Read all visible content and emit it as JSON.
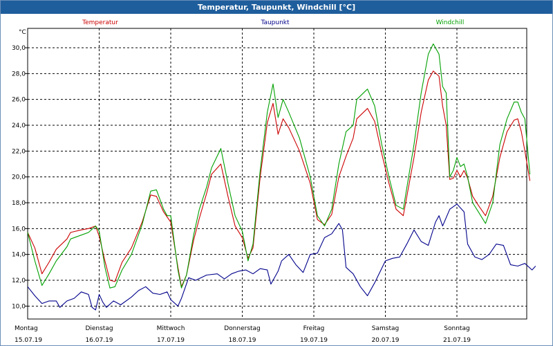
{
  "window": {
    "title": "Temperatur, Taupunkt, Windchill [°C]"
  },
  "chart_data": {
    "type": "line",
    "title": "Temperatur, Taupunkt, Windchill [°C]",
    "ylabel": "°C",
    "ylim": [
      9.0,
      31.5
    ],
    "yticks": [
      10.0,
      12.0,
      14.0,
      16.0,
      18.0,
      20.0,
      22.0,
      24.0,
      26.0,
      28.0,
      30.0
    ],
    "ytick_labels": [
      "10,0",
      "12,0",
      "14,0",
      "16,0",
      "18,0",
      "20,0",
      "22,0",
      "24,0",
      "26,0",
      "28,0",
      "30,0"
    ],
    "xlim": [
      0,
      7
    ],
    "xticks": [
      {
        "day": "Montag",
        "date": "15.07.19"
      },
      {
        "day": "Dienstag",
        "date": "16.07.19"
      },
      {
        "day": "Mittwoch",
        "date": "17.07.19"
      },
      {
        "day": "Donnerstag",
        "date": "18.07.19"
      },
      {
        "day": "Freitag",
        "date": "19.07.19"
      },
      {
        "day": "Samstag",
        "date": "20.07.19"
      },
      {
        "day": "Sonntag",
        "date": "21.07.19"
      }
    ],
    "grid": true,
    "legend_position": "top",
    "series": [
      {
        "name": "Temperatur",
        "color": "#cc0000",
        "points": [
          [
            0.0,
            15.7
          ],
          [
            0.1,
            14.5
          ],
          [
            0.2,
            12.5
          ],
          [
            0.3,
            13.4
          ],
          [
            0.4,
            14.4
          ],
          [
            0.55,
            15.2
          ],
          [
            0.6,
            15.7
          ],
          [
            0.75,
            15.9
          ],
          [
            0.85,
            16.0
          ],
          [
            0.95,
            16.2
          ],
          [
            1.0,
            15.4
          ],
          [
            1.08,
            13.5
          ],
          [
            1.15,
            12.0
          ],
          [
            1.22,
            11.9
          ],
          [
            1.32,
            13.4
          ],
          [
            1.45,
            14.5
          ],
          [
            1.6,
            16.5
          ],
          [
            1.72,
            18.6
          ],
          [
            1.8,
            18.5
          ],
          [
            1.9,
            17.3
          ],
          [
            1.95,
            16.9
          ],
          [
            2.0,
            16.5
          ],
          [
            2.1,
            13.0
          ],
          [
            2.15,
            11.5
          ],
          [
            2.22,
            12.4
          ],
          [
            2.32,
            15.1
          ],
          [
            2.4,
            16.8
          ],
          [
            2.5,
            18.7
          ],
          [
            2.57,
            20.2
          ],
          [
            2.7,
            21.0
          ],
          [
            2.8,
            18.5
          ],
          [
            2.9,
            16.2
          ],
          [
            3.0,
            15.3
          ],
          [
            3.08,
            13.7
          ],
          [
            3.15,
            14.5
          ],
          [
            3.25,
            20.0
          ],
          [
            3.35,
            24.2
          ],
          [
            3.43,
            25.7
          ],
          [
            3.5,
            23.3
          ],
          [
            3.57,
            24.5
          ],
          [
            3.65,
            23.8
          ],
          [
            3.8,
            22.0
          ],
          [
            3.95,
            19.5
          ],
          [
            4.05,
            16.7
          ],
          [
            4.15,
            16.3
          ],
          [
            4.25,
            17.1
          ],
          [
            4.35,
            20.0
          ],
          [
            4.45,
            21.6
          ],
          [
            4.55,
            23.0
          ],
          [
            4.6,
            24.5
          ],
          [
            4.75,
            25.3
          ],
          [
            4.85,
            24.3
          ],
          [
            4.95,
            21.8
          ],
          [
            5.05,
            19.5
          ],
          [
            5.15,
            17.5
          ],
          [
            5.25,
            17.0
          ],
          [
            5.4,
            21.5
          ],
          [
            5.5,
            25.0
          ],
          [
            5.6,
            27.5
          ],
          [
            5.67,
            28.2
          ],
          [
            5.75,
            27.8
          ],
          [
            5.8,
            25.5
          ],
          [
            5.85,
            24.0
          ],
          [
            5.9,
            19.8
          ],
          [
            5.95,
            19.9
          ],
          [
            6.0,
            20.5
          ],
          [
            6.05,
            20.0
          ],
          [
            6.1,
            20.5
          ],
          [
            6.15,
            19.9
          ],
          [
            6.22,
            18.5
          ],
          [
            6.3,
            17.8
          ],
          [
            6.4,
            17.0
          ],
          [
            6.5,
            18.5
          ],
          [
            6.6,
            21.5
          ],
          [
            6.7,
            23.5
          ],
          [
            6.8,
            24.4
          ],
          [
            6.85,
            24.5
          ],
          [
            6.9,
            23.5
          ],
          [
            6.95,
            22.0
          ],
          [
            7.02,
            19.7
          ]
        ]
      },
      {
        "name": "Taupunkt",
        "color": "#00008b",
        "points": [
          [
            0.0,
            11.5
          ],
          [
            0.1,
            10.8
          ],
          [
            0.2,
            10.2
          ],
          [
            0.3,
            10.4
          ],
          [
            0.4,
            10.4
          ],
          [
            0.45,
            9.9
          ],
          [
            0.55,
            10.4
          ],
          [
            0.65,
            10.6
          ],
          [
            0.75,
            11.1
          ],
          [
            0.85,
            10.9
          ],
          [
            0.9,
            9.9
          ],
          [
            0.95,
            9.7
          ],
          [
            1.0,
            10.9
          ],
          [
            1.05,
            10.3
          ],
          [
            1.1,
            9.9
          ],
          [
            1.2,
            10.4
          ],
          [
            1.3,
            10.1
          ],
          [
            1.45,
            10.7
          ],
          [
            1.55,
            11.2
          ],
          [
            1.65,
            11.5
          ],
          [
            1.75,
            11.0
          ],
          [
            1.85,
            10.9
          ],
          [
            1.95,
            11.1
          ],
          [
            2.0,
            10.5
          ],
          [
            2.1,
            10.0
          ],
          [
            2.15,
            10.6
          ],
          [
            2.2,
            11.4
          ],
          [
            2.25,
            12.2
          ],
          [
            2.35,
            12.0
          ],
          [
            2.5,
            12.4
          ],
          [
            2.65,
            12.5
          ],
          [
            2.75,
            12.1
          ],
          [
            2.85,
            12.5
          ],
          [
            2.95,
            12.7
          ],
          [
            3.05,
            12.8
          ],
          [
            3.15,
            12.5
          ],
          [
            3.25,
            12.9
          ],
          [
            3.35,
            12.8
          ],
          [
            3.4,
            11.7
          ],
          [
            3.5,
            12.7
          ],
          [
            3.55,
            13.5
          ],
          [
            3.65,
            14.0
          ],
          [
            3.75,
            13.2
          ],
          [
            3.85,
            12.6
          ],
          [
            3.95,
            14.0
          ],
          [
            4.05,
            14.1
          ],
          [
            4.15,
            15.3
          ],
          [
            4.25,
            15.6
          ],
          [
            4.35,
            16.4
          ],
          [
            4.4,
            15.9
          ],
          [
            4.45,
            13.0
          ],
          [
            4.55,
            12.5
          ],
          [
            4.65,
            11.5
          ],
          [
            4.75,
            10.8
          ],
          [
            4.85,
            11.8
          ],
          [
            5.0,
            13.5
          ],
          [
            5.1,
            13.7
          ],
          [
            5.2,
            13.8
          ],
          [
            5.3,
            14.8
          ],
          [
            5.4,
            15.9
          ],
          [
            5.5,
            15.0
          ],
          [
            5.6,
            14.7
          ],
          [
            5.7,
            16.5
          ],
          [
            5.75,
            17.0
          ],
          [
            5.8,
            16.2
          ],
          [
            5.9,
            17.5
          ],
          [
            6.0,
            17.9
          ],
          [
            6.1,
            17.3
          ],
          [
            6.15,
            14.8
          ],
          [
            6.25,
            13.8
          ],
          [
            6.35,
            13.6
          ],
          [
            6.45,
            14.0
          ],
          [
            6.55,
            14.8
          ],
          [
            6.65,
            14.7
          ],
          [
            6.75,
            13.2
          ],
          [
            6.85,
            13.1
          ],
          [
            6.95,
            13.3
          ],
          [
            7.05,
            12.8
          ],
          [
            7.1,
            13.1
          ]
        ]
      },
      {
        "name": "Windchill",
        "color": "#00a000",
        "points": [
          [
            0.0,
            15.7
          ],
          [
            0.1,
            13.5
          ],
          [
            0.2,
            11.6
          ],
          [
            0.3,
            12.5
          ],
          [
            0.4,
            13.5
          ],
          [
            0.55,
            14.6
          ],
          [
            0.6,
            15.2
          ],
          [
            0.75,
            15.5
          ],
          [
            0.85,
            15.7
          ],
          [
            0.95,
            16.2
          ],
          [
            1.0,
            15.8
          ],
          [
            1.08,
            13.0
          ],
          [
            1.15,
            11.4
          ],
          [
            1.22,
            11.5
          ],
          [
            1.32,
            12.8
          ],
          [
            1.45,
            14.0
          ],
          [
            1.6,
            16.3
          ],
          [
            1.72,
            18.9
          ],
          [
            1.8,
            19.0
          ],
          [
            1.9,
            17.5
          ],
          [
            1.95,
            17.0
          ],
          [
            2.0,
            17.0
          ],
          [
            2.1,
            12.8
          ],
          [
            2.15,
            11.4
          ],
          [
            2.22,
            12.4
          ],
          [
            2.32,
            15.5
          ],
          [
            2.4,
            17.5
          ],
          [
            2.5,
            19.2
          ],
          [
            2.57,
            20.7
          ],
          [
            2.7,
            22.2
          ],
          [
            2.8,
            19.5
          ],
          [
            2.9,
            17.0
          ],
          [
            3.0,
            15.8
          ],
          [
            3.08,
            13.5
          ],
          [
            3.15,
            14.8
          ],
          [
            3.25,
            20.5
          ],
          [
            3.35,
            25.0
          ],
          [
            3.43,
            27.2
          ],
          [
            3.5,
            24.6
          ],
          [
            3.57,
            26.0
          ],
          [
            3.65,
            25.0
          ],
          [
            3.8,
            23.0
          ],
          [
            3.95,
            20.0
          ],
          [
            4.05,
            17.0
          ],
          [
            4.15,
            16.2
          ],
          [
            4.25,
            17.5
          ],
          [
            4.35,
            21.0
          ],
          [
            4.45,
            23.5
          ],
          [
            4.55,
            24.0
          ],
          [
            4.6,
            26.0
          ],
          [
            4.75,
            26.8
          ],
          [
            4.85,
            25.5
          ],
          [
            4.95,
            22.5
          ],
          [
            5.05,
            20.0
          ],
          [
            5.15,
            17.8
          ],
          [
            5.25,
            17.5
          ],
          [
            5.4,
            22.5
          ],
          [
            5.5,
            26.5
          ],
          [
            5.6,
            29.5
          ],
          [
            5.67,
            30.3
          ],
          [
            5.75,
            29.5
          ],
          [
            5.8,
            27.0
          ],
          [
            5.85,
            26.5
          ],
          [
            5.9,
            20.0
          ],
          [
            5.95,
            20.5
          ],
          [
            6.0,
            21.5
          ],
          [
            6.05,
            20.8
          ],
          [
            6.1,
            21.0
          ],
          [
            6.15,
            20.0
          ],
          [
            6.22,
            18.0
          ],
          [
            6.3,
            17.3
          ],
          [
            6.4,
            16.4
          ],
          [
            6.5,
            18.0
          ],
          [
            6.6,
            22.5
          ],
          [
            6.7,
            24.5
          ],
          [
            6.8,
            25.8
          ],
          [
            6.85,
            25.8
          ],
          [
            6.9,
            25.0
          ],
          [
            6.95,
            24.5
          ],
          [
            7.02,
            20.2
          ]
        ]
      }
    ]
  }
}
